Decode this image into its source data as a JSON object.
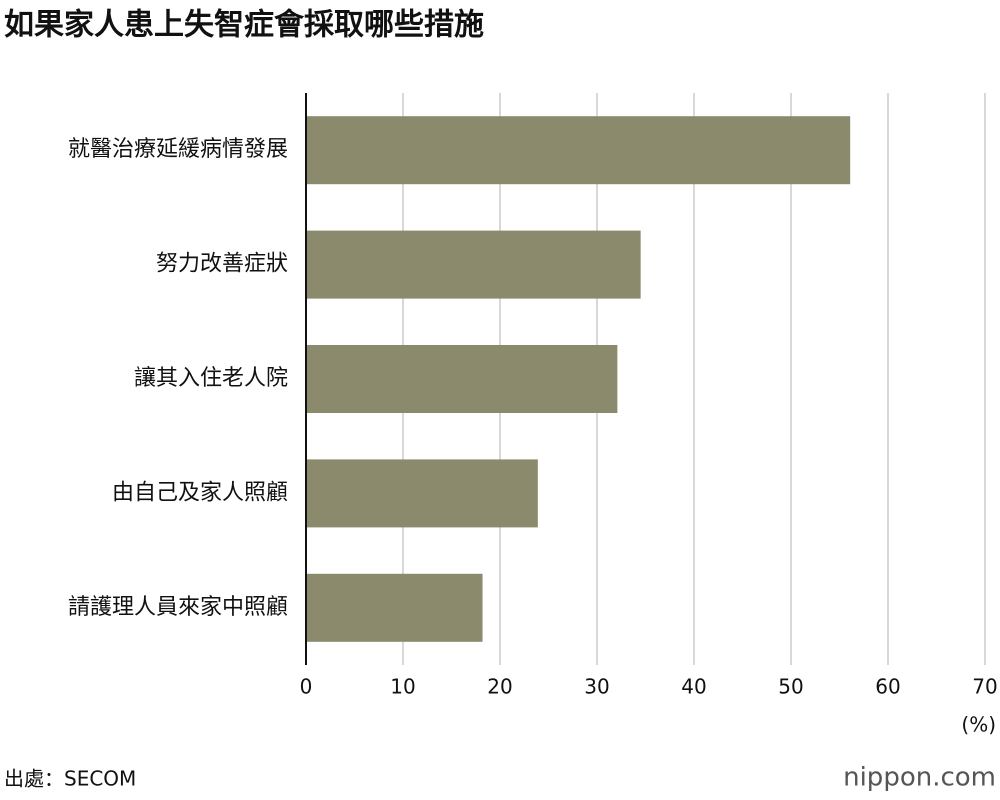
{
  "chart_data": {
    "type": "bar",
    "orientation": "horizontal",
    "title": "如果家人患上失智症會採取哪些措施",
    "categories": [
      "就醫治療延緩病情發展",
      "努力改善症狀",
      "讓其入住老人院",
      "由自己及家人照顧",
      "請護理人員來家中照顧"
    ],
    "values": [
      56.1,
      34.5,
      32.1,
      23.9,
      18.2
    ],
    "color": "#8b8a6c",
    "xlim": [
      0,
      70
    ],
    "xticks": [
      0,
      10,
      20,
      30,
      40,
      50,
      60,
      70
    ],
    "x_unit": "(%)",
    "grid": true,
    "source": "出處：SECOM",
    "brand": "nippon.com"
  }
}
